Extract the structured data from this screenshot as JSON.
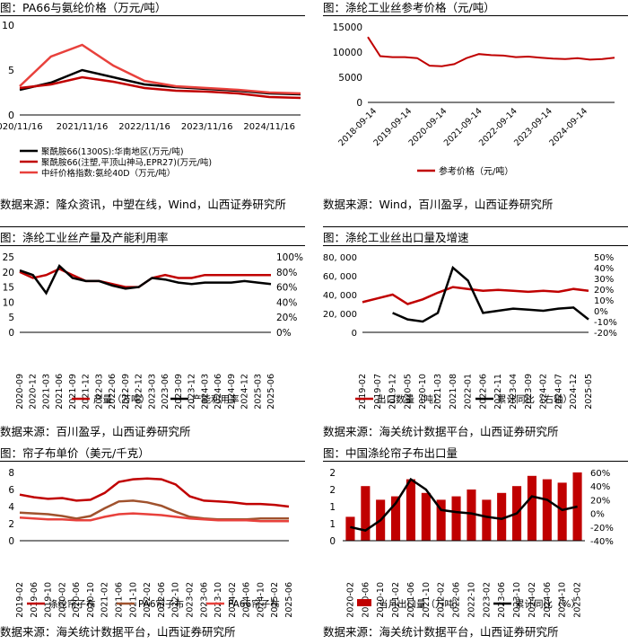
{
  "panels": {
    "p1": {
      "title": "图：PA66与氨纶价格（万元/吨）",
      "source": "数据来源：隆众资讯，中塑在线，Wind，山西证券研究所",
      "chart_data": {
        "type": "line",
        "ylim": [
          0,
          10
        ],
        "yticks": [
          "0",
          "5",
          "10"
        ],
        "x": [
          "2020/11/16",
          "2021/05/16",
          "2021/11/16",
          "2022/05/16",
          "2022/11/16",
          "2023/05/16",
          "2023/11/16",
          "2024/05/16",
          "2024/11/16",
          "2025/05/16"
        ],
        "xtick_labels": [
          "020/11/16",
          "2021/11/16",
          "2022/11/16",
          "2023/11/16",
          "2024/11/16"
        ],
        "xtick_index": [
          0,
          2,
          4,
          6,
          8
        ],
        "series": [
          {
            "name": "聚酰胺66(1300S):华南地区(万元/吨)",
            "color": "#000000",
            "values": [
              2.8,
              3.6,
              5.0,
              4.2,
              3.4,
              3.1,
              2.9,
              2.7,
              2.4,
              2.3
            ]
          },
          {
            "name": "聚酰胺66(注塑,平顶山神马,EPR27)(万元/吨)",
            "color": "#C00000",
            "values": [
              3.0,
              3.4,
              4.2,
              3.7,
              3.0,
              2.7,
              2.6,
              2.4,
              2.0,
              1.9
            ]
          },
          {
            "name": "中纤价格指数:氨纶40D（万元/吨）",
            "color": "#E8413C",
            "values": [
              3.2,
              6.5,
              7.8,
              5.5,
              3.8,
              3.2,
              3.0,
              2.8,
              2.5,
              2.4
            ]
          }
        ]
      }
    },
    "p2": {
      "title": "图：涤纶工业丝参考价格（元/吨）",
      "source": "数据来源：Wind，百川盈孚，山西证券研究所",
      "chart_data": {
        "type": "line",
        "ylim": [
          0,
          15000
        ],
        "yticks": [
          "0",
          "5000",
          "10000",
          "15000"
        ],
        "xtick_labels": [
          "2018-09-14",
          "2019-09-14",
          "2020-09-14",
          "2021-09-14",
          "2022-09-14",
          "2023-09-14",
          "2024-09-14"
        ],
        "x": [
          "2018-09",
          "2019-01",
          "2019-05",
          "2019-09",
          "2020-01",
          "2020-05",
          "2020-09",
          "2021-01",
          "2021-05",
          "2021-09",
          "2022-01",
          "2022-05",
          "2022-09",
          "2023-01",
          "2023-05",
          "2023-09",
          "2024-01",
          "2024-05",
          "2024-09",
          "2025-01",
          "2025-05"
        ],
        "series": [
          {
            "name": "参考价格（元/吨）",
            "color": "#C00000",
            "values": [
              13000,
              9200,
              9000,
              9000,
              8800,
              7300,
              7200,
              7600,
              8800,
              9600,
              9400,
              9300,
              9000,
              9100,
              8900,
              8700,
              8600,
              8800,
              8500,
              8600,
              8900
            ]
          }
        ]
      }
    },
    "p3": {
      "title": "图：涤纶工业丝产量及产能利用率",
      "source": "数据来源：百川盈孚，山西证券研究所",
      "chart_data": {
        "type": "line",
        "ylim": [
          0,
          25
        ],
        "y2lim": [
          0,
          100
        ],
        "yticks": [
          "0",
          "5",
          "10",
          "15",
          "20",
          "25"
        ],
        "y2ticks": [
          "0%",
          "20%",
          "40%",
          "60%",
          "80%",
          "100%"
        ],
        "xtick_labels": [
          "2020-09",
          "2020-12",
          "2021-03",
          "2021-06",
          "2021-09",
          "2021-12",
          "2022-03",
          "2022-06",
          "2022-09",
          "2022-12",
          "2023-03",
          "2023-06",
          "2023-09",
          "2023-12",
          "2024-03",
          "2024-06",
          "2024-09",
          "2024-12",
          "2025-03",
          "2025-06"
        ],
        "series": [
          {
            "name": "产量（万吨）",
            "color": "#C00000",
            "axis": "left",
            "values": [
              20,
              18,
              19,
              21,
              19,
              17,
              17,
              16,
              15,
              15,
              18,
              19,
              18,
              18,
              19,
              19,
              19,
              19,
              19,
              19
            ]
          },
          {
            "name": "产能利用率",
            "color": "#000000",
            "axis": "right",
            "values": [
              82,
              76,
              52,
              88,
              72,
              68,
              68,
              62,
              58,
              60,
              72,
              70,
              66,
              64,
              66,
              66,
              66,
              68,
              66,
              64
            ]
          }
        ]
      }
    },
    "p4": {
      "title": "图：涤纶工业丝出口量及增速",
      "source": "数据来源：海关统计数据平台，山西证券研究所",
      "chart_data": {
        "type": "line",
        "ylim": [
          0,
          80000
        ],
        "y2lim": [
          -20,
          50
        ],
        "yticks": [
          "0",
          "20, 000",
          "40, 000",
          "60, 000",
          "80, 000"
        ],
        "y2ticks": [
          "-20%",
          "-10%",
          "0%",
          "10%",
          "20%",
          "30%",
          "40%",
          "50%"
        ],
        "xtick_labels": [
          "2019-02",
          "2019-07",
          "2019-12",
          "2020-05",
          "2020-10",
          "2021-03",
          "2021-08",
          "2022-01",
          "2022-06",
          "2022-11",
          "2023-04",
          "2023-09",
          "2024-02",
          "2024-07",
          "2024-12",
          "2025-05"
        ],
        "series": [
          {
            "name": "出口数量（吨）",
            "color": "#C00000",
            "axis": "left",
            "values": [
              32000,
              36000,
              40000,
              30000,
              35000,
              42000,
              48000,
              46000,
              44000,
              45000,
              44000,
              43000,
              44000,
              43000,
              46000,
              44000
            ]
          },
          {
            "name": "累计同比（右轴）",
            "color": "#000000",
            "axis": "right",
            "values": [
              null,
              null,
              -2,
              -8,
              -10,
              -2,
              40,
              28,
              -2,
              0,
              2,
              1,
              0,
              2,
              3,
              -8
            ]
          }
        ]
      }
    },
    "p5": {
      "title": "图：帘子布单价（美元/千克）",
      "source": "数据来源：海关统计数据平台，山西证券研究所",
      "chart_data": {
        "type": "line",
        "ylim": [
          0,
          8
        ],
        "yticks": [
          "0",
          "2",
          "4",
          "6",
          "8"
        ],
        "xtick_labels": [
          "2019-02",
          "2019-06",
          "2019-10",
          "2020-02",
          "2020-06",
          "2020-10",
          "2021-02",
          "2021-06",
          "2021-10",
          "2022-02",
          "2022-06",
          "2022-10",
          "2023-02",
          "2023-06",
          "2023-10",
          "2024-02",
          "2024-06",
          "2024-10",
          "2025-02",
          "2025-06"
        ],
        "series": [
          {
            "name": "涤纶帘子布",
            "color": "#C00000",
            "values": [
              5.4,
              5.1,
              4.9,
              5.0,
              4.7,
              4.8,
              5.6,
              6.9,
              7.2,
              7.3,
              7.2,
              6.6,
              5.2,
              4.7,
              4.6,
              4.5,
              4.3,
              4.3,
              4.2,
              4.0
            ]
          },
          {
            "name": "PA6帘子布",
            "color": "#A0522D",
            "values": [
              3.3,
              3.2,
              3.1,
              2.9,
              2.6,
              2.9,
              3.8,
              4.6,
              4.7,
              4.5,
              4.1,
              3.4,
              2.8,
              2.6,
              2.5,
              2.5,
              2.5,
              2.6,
              2.6,
              2.6
            ]
          },
          {
            "name": "PA66帘子布",
            "color": "#E8413C",
            "values": [
              2.7,
              2.6,
              2.5,
              2.5,
              2.4,
              2.4,
              2.8,
              3.1,
              3.2,
              3.1,
              3.0,
              2.8,
              2.6,
              2.5,
              2.4,
              2.4,
              2.4,
              2.3,
              2.3,
              2.3
            ]
          }
        ]
      }
    },
    "p6": {
      "title": "图：中国涤纶帘子布出口量",
      "source": "数据来源：海关统计数据平台，山西证券研究所",
      "chart_data": {
        "type": "bar+line",
        "ylim": [
          0,
          2
        ],
        "y2lim": [
          -40,
          60
        ],
        "yticks": [
          "0",
          "1",
          "1",
          "2",
          "2"
        ],
        "y2ticks": [
          "-40%",
          "-20%",
          "0%",
          "20%",
          "40%",
          "60%"
        ],
        "xtick_labels": [
          "2020-02",
          "2020-06",
          "2020-10",
          "2021-02",
          "2021-06",
          "2021-10",
          "2022-02",
          "2022-06",
          "2022-10",
          "2023-02",
          "2023-06",
          "2023-10",
          "2024-02",
          "2024-06",
          "2024-10",
          "2025-02"
        ],
        "series": [
          {
            "name": "当月出口量（万吨）",
            "color": "#C00000",
            "type": "bar",
            "values": [
              0.7,
              1.6,
              1.2,
              1.3,
              1.8,
              1.4,
              1.2,
              1.3,
              1.5,
              1.2,
              1.4,
              1.6,
              1.9,
              1.8,
              1.7,
              2.0
            ]
          },
          {
            "name": "累计同比（%）",
            "color": "#000000",
            "type": "line",
            "axis": "right",
            "values": [
              -20,
              -25,
              -10,
              15,
              50,
              35,
              5,
              2,
              0,
              -5,
              -8,
              0,
              25,
              20,
              5,
              10
            ]
          }
        ]
      }
    }
  }
}
